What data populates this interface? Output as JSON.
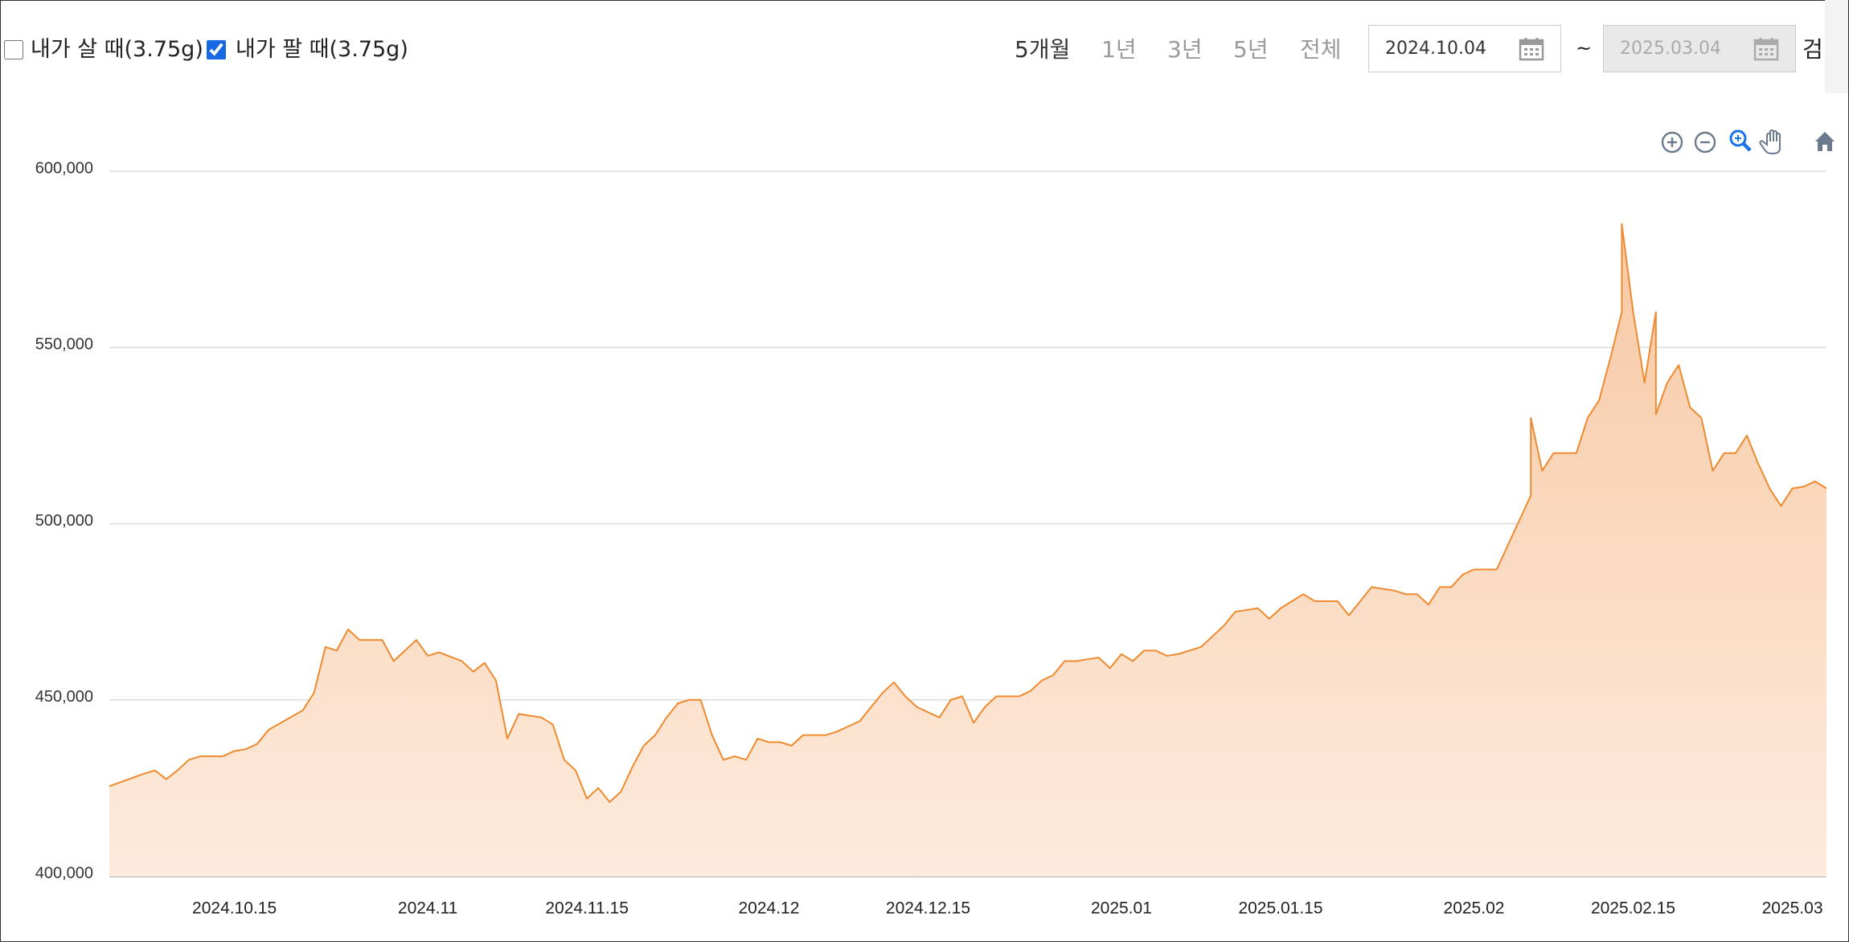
{
  "controls": {
    "buy_checkbox": {
      "label": "내가 살 때(3.75g)",
      "checked": false
    },
    "sell_checkbox": {
      "label": "내가 팔 때(3.75g)",
      "checked": true
    },
    "periods": [
      "5개월",
      "1년",
      "3년",
      "5년",
      "전체"
    ],
    "selected_period_index": 0,
    "date_from": "2024.10.04",
    "date_separator": "~",
    "date_to": "2025.03.04",
    "search_button": "검"
  },
  "chart_data": {
    "type": "area",
    "x": [
      "2024.10.04",
      "2024.10.07",
      "2024.10.08",
      "2024.10.09",
      "2024.10.10",
      "2024.10.11",
      "2024.10.12",
      "2024.10.14",
      "2024.10.15",
      "2024.10.16",
      "2024.10.17",
      "2024.10.18",
      "2024.10.21",
      "2024.10.22",
      "2024.10.23",
      "2024.10.24",
      "2024.10.25",
      "2024.10.26",
      "2024.10.28",
      "2024.10.29",
      "2024.10.30",
      "2024.10.31",
      "2024.11.01",
      "2024.11.02",
      "2024.11.04",
      "2024.11.05",
      "2024.11.06",
      "2024.11.07",
      "2024.11.08",
      "2024.11.09",
      "2024.11.10",
      "2024.11.11",
      "2024.11.12",
      "2024.11.13",
      "2024.11.14",
      "2024.11.15",
      "2024.11.16",
      "2024.11.17",
      "2024.11.18",
      "2024.11.19",
      "2024.11.20",
      "2024.11.21",
      "2024.11.22",
      "2024.11.23",
      "2024.11.24",
      "2024.11.25",
      "2024.11.26",
      "2024.11.27",
      "2024.11.28",
      "2024.11.29",
      "2024.11.30",
      "2024.12.01",
      "2024.12.02",
      "2024.12.03",
      "2024.12.04",
      "2024.12.05",
      "2024.12.06",
      "2024.12.07",
      "2024.12.08",
      "2024.12.09",
      "2024.12.10",
      "2024.12.11",
      "2024.12.12",
      "2024.12.13",
      "2024.12.14",
      "2024.12.15",
      "2024.12.16",
      "2024.12.17",
      "2024.12.18",
      "2024.12.19",
      "2024.12.20",
      "2024.12.21",
      "2024.12.22",
      "2024.12.23",
      "2024.12.24",
      "2024.12.25",
      "2024.12.26",
      "2024.12.27",
      "2024.12.28",
      "2024.12.29",
      "2024.12.30",
      "2024.12.31",
      "2025.01.01",
      "2025.01.02",
      "2025.01.03",
      "2025.01.04",
      "2025.01.05",
      "2025.01.06",
      "2025.01.07",
      "2025.01.08",
      "2025.01.09",
      "2025.01.10",
      "2025.01.11",
      "2025.01.12",
      "2025.01.13",
      "2025.01.14",
      "2025.01.15",
      "2025.01.16",
      "2025.01.17",
      "2025.01.18",
      "2025.01.19",
      "2025.01.20",
      "2025.01.21",
      "2025.01.22",
      "2025.01.23",
      "2025.01.24",
      "2025.01.25",
      "2025.01.26",
      "2025.01.27",
      "2025.01.28",
      "2025.01.29",
      "2025.01.30",
      "2025.01.31",
      "2025.02.01",
      "2025.02.02",
      "2025.02.03",
      "2025.02.04",
      "2025.02.05",
      "2025.02.06",
      "2025.02.06",
      "2025.02.07",
      "2025.02.08",
      "2025.02.09",
      "2025.02.10",
      "2025.02.11",
      "2025.02.12",
      "2025.02.13",
      "2025.02.14",
      "2025.02.14",
      "2025.02.15",
      "2025.02.16",
      "2025.02.17",
      "2025.02.17",
      "2025.02.18",
      "2025.02.19",
      "2025.02.20",
      "2025.02.21",
      "2025.02.22",
      "2025.02.23",
      "2025.02.24",
      "2025.02.25",
      "2025.02.26",
      "2025.02.27",
      "2025.02.28",
      "2025.03.01",
      "2025.03.02",
      "2025.03.03",
      "2025.03.04"
    ],
    "values": [
      425500,
      429000,
      430000,
      427500,
      430000,
      433000,
      434000,
      434000,
      435500,
      436000,
      437500,
      441500,
      447000,
      452000,
      465000,
      464000,
      470000,
      467000,
      467000,
      461000,
      464000,
      467000,
      462500,
      463500,
      461000,
      458000,
      460500,
      455500,
      439000,
      446000,
      445500,
      445000,
      443000,
      433000,
      430000,
      422000,
      425000,
      421000,
      424000,
      431000,
      437000,
      440000,
      445000,
      449000,
      450000,
      450000,
      440000,
      433000,
      434000,
      433000,
      439000,
      438000,
      438000,
      437000,
      440000,
      440000,
      440000,
      441000,
      442500,
      444000,
      448000,
      452000,
      455000,
      451000,
      448000,
      446500,
      445000,
      450000,
      451000,
      443500,
      448000,
      451000,
      451000,
      451000,
      452500,
      455500,
      457000,
      461000,
      461000,
      461500,
      462000,
      459000,
      463000,
      461000,
      464000,
      464000,
      462500,
      463000,
      464000,
      465000,
      468000,
      471000,
      475000,
      475500,
      476000,
      473000,
      476000,
      478000,
      480000,
      478000,
      478000,
      478000,
      474000,
      478000,
      482000,
      481500,
      481000,
      480000,
      480000,
      477000,
      482000,
      482000,
      485500,
      487000,
      487000,
      487000,
      494000,
      501000,
      508000,
      530000,
      515000,
      520000,
      520000,
      520000,
      530000,
      535000,
      547000,
      560000,
      585000,
      560000,
      540000,
      560000,
      531000,
      540000,
      545000,
      533000,
      530000,
      515000,
      520000,
      520000,
      525000,
      517000,
      510000,
      505000,
      510000,
      510500,
      512000,
      510000
    ],
    "color": "#ee8a2f",
    "xlim": [
      "2024.10.04",
      "2025.03.04"
    ],
    "xticks": [
      "2024.10.15",
      {
        "value": "2024.11.01",
        "label": "2024.11"
      },
      "2024.11.15",
      {
        "value": "2024.12.01",
        "label": "2024.12"
      },
      "2024.12.15",
      {
        "value": "2025.01.01",
        "label": "2025.01"
      },
      "2025.01.15",
      {
        "value": "2025.02.01",
        "label": "2025.02"
      },
      "2025.02.15",
      {
        "value": "2025.03.01",
        "label": "2025.03"
      }
    ],
    "ylim": [
      400000,
      600000
    ],
    "yticks": [
      {
        "value": 400000,
        "label": "400,000"
      },
      {
        "value": 450000,
        "label": "450,000"
      },
      {
        "value": 500000,
        "label": "500,000"
      },
      {
        "value": 550000,
        "label": "550,000"
      },
      {
        "value": 600000,
        "label": "600,000"
      }
    ],
    "grid": true
  }
}
